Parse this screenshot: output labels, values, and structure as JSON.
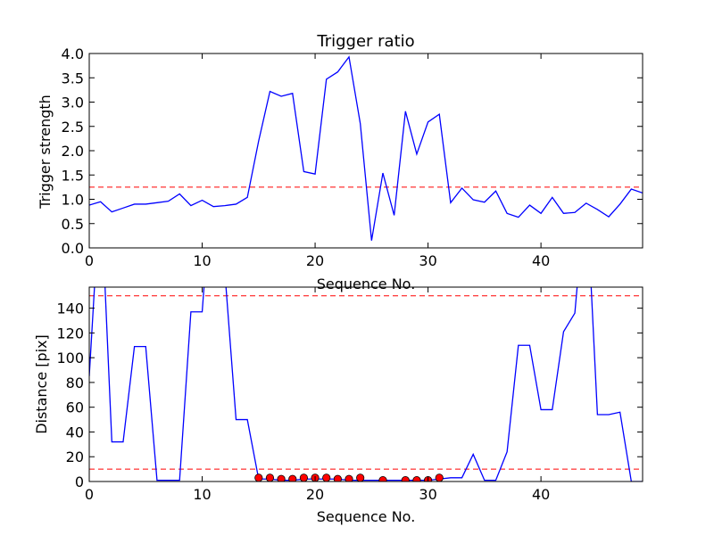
{
  "chart_data": [
    {
      "type": "line",
      "title": "Trigger ratio",
      "xlabel": "Sequence No.",
      "ylabel": "Trigger strength",
      "xlim": [
        0,
        49
      ],
      "ylim": [
        0,
        4
      ],
      "xticks": [
        "0",
        "10",
        "20",
        "30",
        "40"
      ],
      "yticks": [
        "0.0",
        "0.5",
        "1.0",
        "1.5",
        "2.0",
        "2.5",
        "3.0",
        "3.5",
        "4.0"
      ],
      "grid": false,
      "series": [
        {
          "color": "#0000ff",
          "x": [
            0,
            1,
            2,
            3,
            4,
            5,
            6,
            7,
            8,
            9,
            10,
            11,
            12,
            13,
            14,
            15,
            16,
            17,
            18,
            19,
            20,
            21,
            22,
            23,
            24,
            25,
            26,
            27,
            28,
            29,
            30,
            31,
            32,
            33,
            34,
            35,
            36,
            37,
            38,
            39,
            40,
            41,
            42,
            43,
            44,
            45,
            46,
            47,
            48,
            49
          ],
          "y": [
            0.88,
            0.95,
            0.74,
            0.82,
            0.9,
            0.9,
            0.93,
            0.96,
            1.11,
            0.87,
            0.98,
            0.85,
            0.87,
            0.9,
            1.04,
            2.2,
            3.22,
            3.12,
            3.18,
            1.57,
            1.52,
            3.47,
            3.62,
            3.93,
            2.56,
            0.15,
            1.54,
            0.67,
            2.81,
            1.93,
            2.59,
            2.75,
            0.93,
            1.23,
            0.99,
            0.94,
            1.17,
            0.71,
            0.63,
            0.88,
            0.71,
            1.04,
            0.71,
            0.73,
            0.92,
            0.79,
            0.64,
            0.9,
            1.21,
            1.13
          ]
        }
      ],
      "hlines": [
        {
          "y": 1.25,
          "style": "dashed",
          "color": "#ff0000"
        }
      ]
    },
    {
      "type": "line",
      "xlabel": "Sequence No.",
      "ylabel": "Distance [pix]",
      "xlim": [
        0,
        49
      ],
      "ylim": [
        0,
        157
      ],
      "xticks": [
        "0",
        "10",
        "20",
        "30",
        "40"
      ],
      "yticks": [
        "0",
        "20",
        "40",
        "60",
        "80",
        "100",
        "120",
        "140"
      ],
      "grid": false,
      "series": [
        {
          "color": "#0000ff",
          "x": [
            0,
            1,
            2,
            3,
            4,
            5,
            6,
            7,
            8,
            9,
            10,
            11,
            12,
            13,
            14,
            15,
            16,
            17,
            18,
            19,
            20,
            21,
            22,
            23,
            24,
            25,
            26,
            27,
            28,
            29,
            30,
            31,
            32,
            33,
            34,
            35,
            36,
            37,
            38,
            39,
            40,
            41,
            42,
            43,
            44,
            45,
            46,
            47,
            48,
            49
          ],
          "y": [
            85,
            240,
            32,
            32,
            109,
            109,
            1,
            1,
            1,
            137,
            137,
            260,
            170,
            50,
            50,
            2,
            2,
            1,
            1,
            2,
            2,
            2,
            2,
            1,
            1,
            1,
            1,
            1,
            1,
            1,
            1,
            2,
            3,
            3,
            22,
            1,
            1,
            24,
            110,
            110,
            58,
            58,
            121,
            136,
            240,
            54,
            54,
            56,
            0,
            0
          ]
        },
        {
          "color": "#ff0000",
          "marker": "circle",
          "x": [
            15,
            16,
            17,
            18,
            19,
            20,
            21,
            22,
            23,
            24,
            26,
            28,
            29,
            30,
            31
          ],
          "y": [
            3,
            3,
            2,
            2,
            3,
            3,
            3,
            2,
            2,
            3,
            1,
            1,
            1,
            1,
            3
          ]
        }
      ],
      "hlines": [
        {
          "y": 150,
          "style": "dashed",
          "color": "#ff0000"
        },
        {
          "y": 10,
          "style": "dashed",
          "color": "#ff0000"
        }
      ]
    }
  ]
}
